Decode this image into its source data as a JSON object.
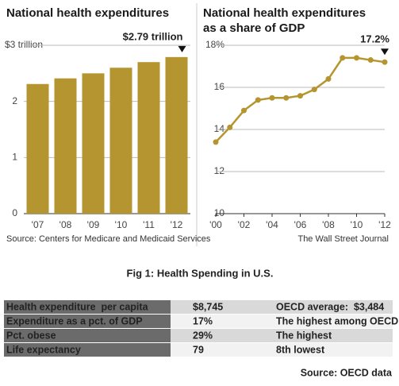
{
  "chart_data": [
    {
      "type": "bar",
      "title": "National health expenditures",
      "categories": [
        "'07",
        "'08",
        "'09",
        "'10",
        "'11",
        "'12"
      ],
      "values": [
        2.31,
        2.41,
        2.5,
        2.6,
        2.7,
        2.79
      ],
      "value_labels": [
        null,
        null,
        null,
        null,
        null,
        "$2.79 trillion"
      ],
      "color": "#b5952f",
      "ylim": [
        0,
        3
      ],
      "yticks": [
        0,
        1,
        2,
        {
          "value": 3,
          "label": "$3 trillion"
        }
      ],
      "grid": true,
      "source": "Source: Centers for Medicare and Medicaid Services"
    },
    {
      "type": "line",
      "title": [
        "National health expenditures",
        "as a share of GDP"
      ],
      "x": [
        2000,
        2001,
        2002,
        2003,
        2004,
        2005,
        2006,
        2007,
        2008,
        2009,
        2010,
        2011,
        2012
      ],
      "values": [
        13.4,
        14.1,
        14.9,
        15.4,
        15.5,
        15.5,
        15.6,
        15.9,
        16.4,
        17.4,
        17.4,
        17.3,
        17.2
      ],
      "value_labels": [
        null,
        null,
        null,
        null,
        null,
        null,
        null,
        null,
        null,
        null,
        null,
        null,
        "17.2%"
      ],
      "color": "#b5952f",
      "xlim": [
        2000,
        2012
      ],
      "xticks": [
        {
          "value": 2000,
          "label": "'00"
        },
        {
          "value": 2002,
          "label": "'02"
        },
        {
          "value": 2004,
          "label": "'04"
        },
        {
          "value": 2006,
          "label": "'06"
        },
        {
          "value": 2008,
          "label": "'08"
        },
        {
          "value": 2010,
          "label": "'10"
        },
        {
          "value": 2012,
          "label": "'12"
        }
      ],
      "ylim": [
        10,
        18
      ],
      "yticks": [
        10,
        12,
        14,
        16,
        {
          "value": 18,
          "label": "18%"
        }
      ],
      "grid": true,
      "source": "The Wall Street Journal"
    }
  ],
  "caption": "Fig 1: Health Spending in U.S.",
  "table": {
    "rows": [
      [
        "Health expenditure  per capita",
        "$8,745",
        "OECD average:  $3,484"
      ],
      [
        "Expenditure as a pct. of GDP",
        "17%",
        "The highest among OECD"
      ],
      [
        "Pct. obese",
        "29%",
        "The highest"
      ],
      [
        "Life expectancy",
        "79",
        "8th lowest"
      ]
    ]
  },
  "source": "Source: OECD data"
}
